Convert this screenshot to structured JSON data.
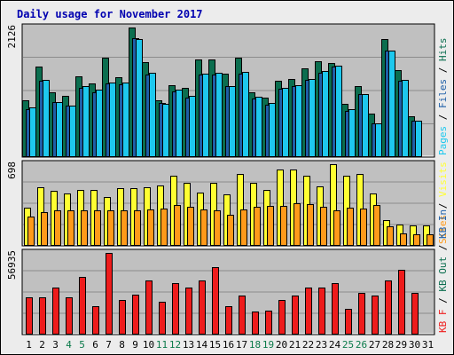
{
  "chart_data": {
    "type": "bar",
    "title": "Daily usage for November 2017",
    "colors": {
      "background": "#ececec",
      "plot_bg": "#c0c0c0",
      "title": "#0000b0",
      "hits": "#0b6e4f",
      "files": "#1f5fa8",
      "pages": "#1ec8ee",
      "visits": "#ffff33",
      "sites": "#ff9a1a",
      "kbf": "#ee1c1c",
      "weekend_day": "#0b7a4a",
      "weekday": "#000000"
    },
    "days": [
      "1",
      "2",
      "3",
      "4",
      "5",
      "6",
      "7",
      "8",
      "9",
      "10",
      "11",
      "12",
      "13",
      "14",
      "15",
      "16",
      "17",
      "18",
      "19",
      "20",
      "21",
      "22",
      "23",
      "24",
      "25",
      "26",
      "27",
      "28",
      "29",
      "30",
      "31"
    ],
    "weekend_days": [
      4,
      5,
      11,
      12,
      18,
      19,
      25,
      26
    ],
    "panels": [
      {
        "name": "hits-files-pages",
        "max_label": "2126",
        "ymax": 2126,
        "legend": [
          {
            "text": "Pages",
            "key": "pages"
          },
          {
            "text": " / ",
            "key": "weekday"
          },
          {
            "text": "Files",
            "key": "files"
          },
          {
            "text": " / ",
            "key": "weekday"
          },
          {
            "text": "Hits",
            "key": "hits"
          }
        ],
        "series": [
          {
            "name": "Hits",
            "color_key": "hits",
            "values": [
              930,
              1480,
              1070,
              1000,
              1320,
              1210,
              1630,
              1310,
              2126,
              1560,
              930,
              1180,
              1140,
              1600,
              1600,
              1370,
              1630,
              1070,
              980,
              1250,
              1280,
              1450,
              1570,
              1550,
              870,
              1170,
              710,
              1930,
              1430,
              670,
              0
            ]
          },
          {
            "name": "Files",
            "color_key": "files",
            "values": [
              790,
              1250,
              910,
              850,
              1140,
              1070,
              1210,
              1190,
              1950,
              1360,
              890,
              1080,
              980,
              1350,
              1360,
              1160,
              1370,
              960,
              860,
              1120,
              1160,
              1270,
              1380,
              1480,
              750,
              1030,
              560,
              1750,
              1250,
              600,
              0
            ]
          },
          {
            "name": "Pages",
            "color_key": "pages",
            "values": [
              820,
              1270,
              910,
              850,
              1160,
              1100,
              1230,
              1220,
              1930,
              1380,
              880,
              1100,
              1000,
              1370,
              1390,
              1170,
              1400,
              990,
              890,
              1140,
              1180,
              1280,
              1410,
              1500,
              780,
              1040,
              560,
              1750,
              1270,
              600,
              0
            ]
          }
        ]
      },
      {
        "name": "visits-sites",
        "max_label": "698",
        "ymax": 698,
        "legend": [
          {
            "text": "Sites",
            "key": "sites"
          },
          {
            "text": " / ",
            "key": "weekday"
          },
          {
            "text": "Visits",
            "key": "visits"
          }
        ],
        "series": [
          {
            "name": "Visits",
            "color_key": "visits",
            "values": [
              330,
              503,
              468,
              451,
              476,
              476,
              414,
              490,
              494,
              498,
              513,
              598,
              536,
              453,
              536,
              442,
              612,
              541,
              480,
              655,
              655,
              603,
              510,
              698,
              597,
              612,
              445,
              218,
              185,
              173,
              172
            ]
          },
          {
            "name": "Sites",
            "color_key": "sites",
            "values": [
              248,
              292,
              307,
              305,
              307,
              303,
              305,
              305,
              305,
              310,
              315,
              350,
              332,
              311,
              302,
              263,
              308,
              335,
              338,
              343,
              365,
              354,
              331,
              307,
              323,
              319,
              352,
              167,
              104,
              96,
              97
            ]
          }
        ]
      },
      {
        "name": "kbf",
        "max_label": "56935",
        "ymax": 56935,
        "legend": [
          {
            "text": "KB F",
            "key": "kbf"
          },
          {
            "text": " / ",
            "key": "weekday"
          },
          {
            "text": "KB Out",
            "key": "hits"
          },
          {
            "text": " / ",
            "key": "weekday"
          },
          {
            "text": "KB In",
            "key": "files"
          }
        ],
        "series": [
          {
            "name": "KB F",
            "color_key": "kbf",
            "values": [
              26000,
              26000,
              33000,
              26000,
              40000,
              20000,
              56935,
              24000,
              28000,
              38000,
              23000,
              36000,
              33000,
              38000,
              47000,
              20000,
              27000,
              16000,
              17000,
              24000,
              27000,
              33000,
              33000,
              36000,
              18000,
              29000,
              27000,
              38000,
              45000,
              29000,
              0
            ]
          }
        ]
      }
    ]
  }
}
